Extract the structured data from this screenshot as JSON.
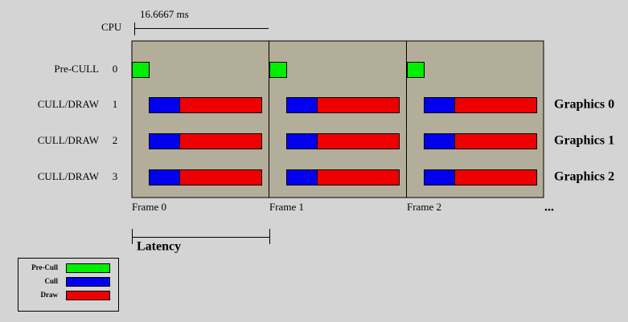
{
  "cpu_label": "CPU",
  "frame_duration": "16.6667 ms",
  "rows": [
    {
      "label": "Pre-CULL",
      "index": 0
    },
    {
      "label": "CULL/DRAW",
      "index": 1
    },
    {
      "label": "CULL/DRAW",
      "index": 2
    },
    {
      "label": "CULL/DRAW",
      "index": 3
    }
  ],
  "pipes": [
    "Graphics 0",
    "Graphics 1",
    "Graphics 2"
  ],
  "frames": [
    "Frame 0",
    "Frame 1",
    "Frame 2"
  ],
  "ellipsis": "...",
  "latency": "Latency",
  "legend": [
    {
      "label": "Pre-Cull",
      "color": "#00ee00"
    },
    {
      "label": "Cull",
      "color": "#0000ee"
    },
    {
      "label": "Draw",
      "color": "#ee0000"
    }
  ]
}
